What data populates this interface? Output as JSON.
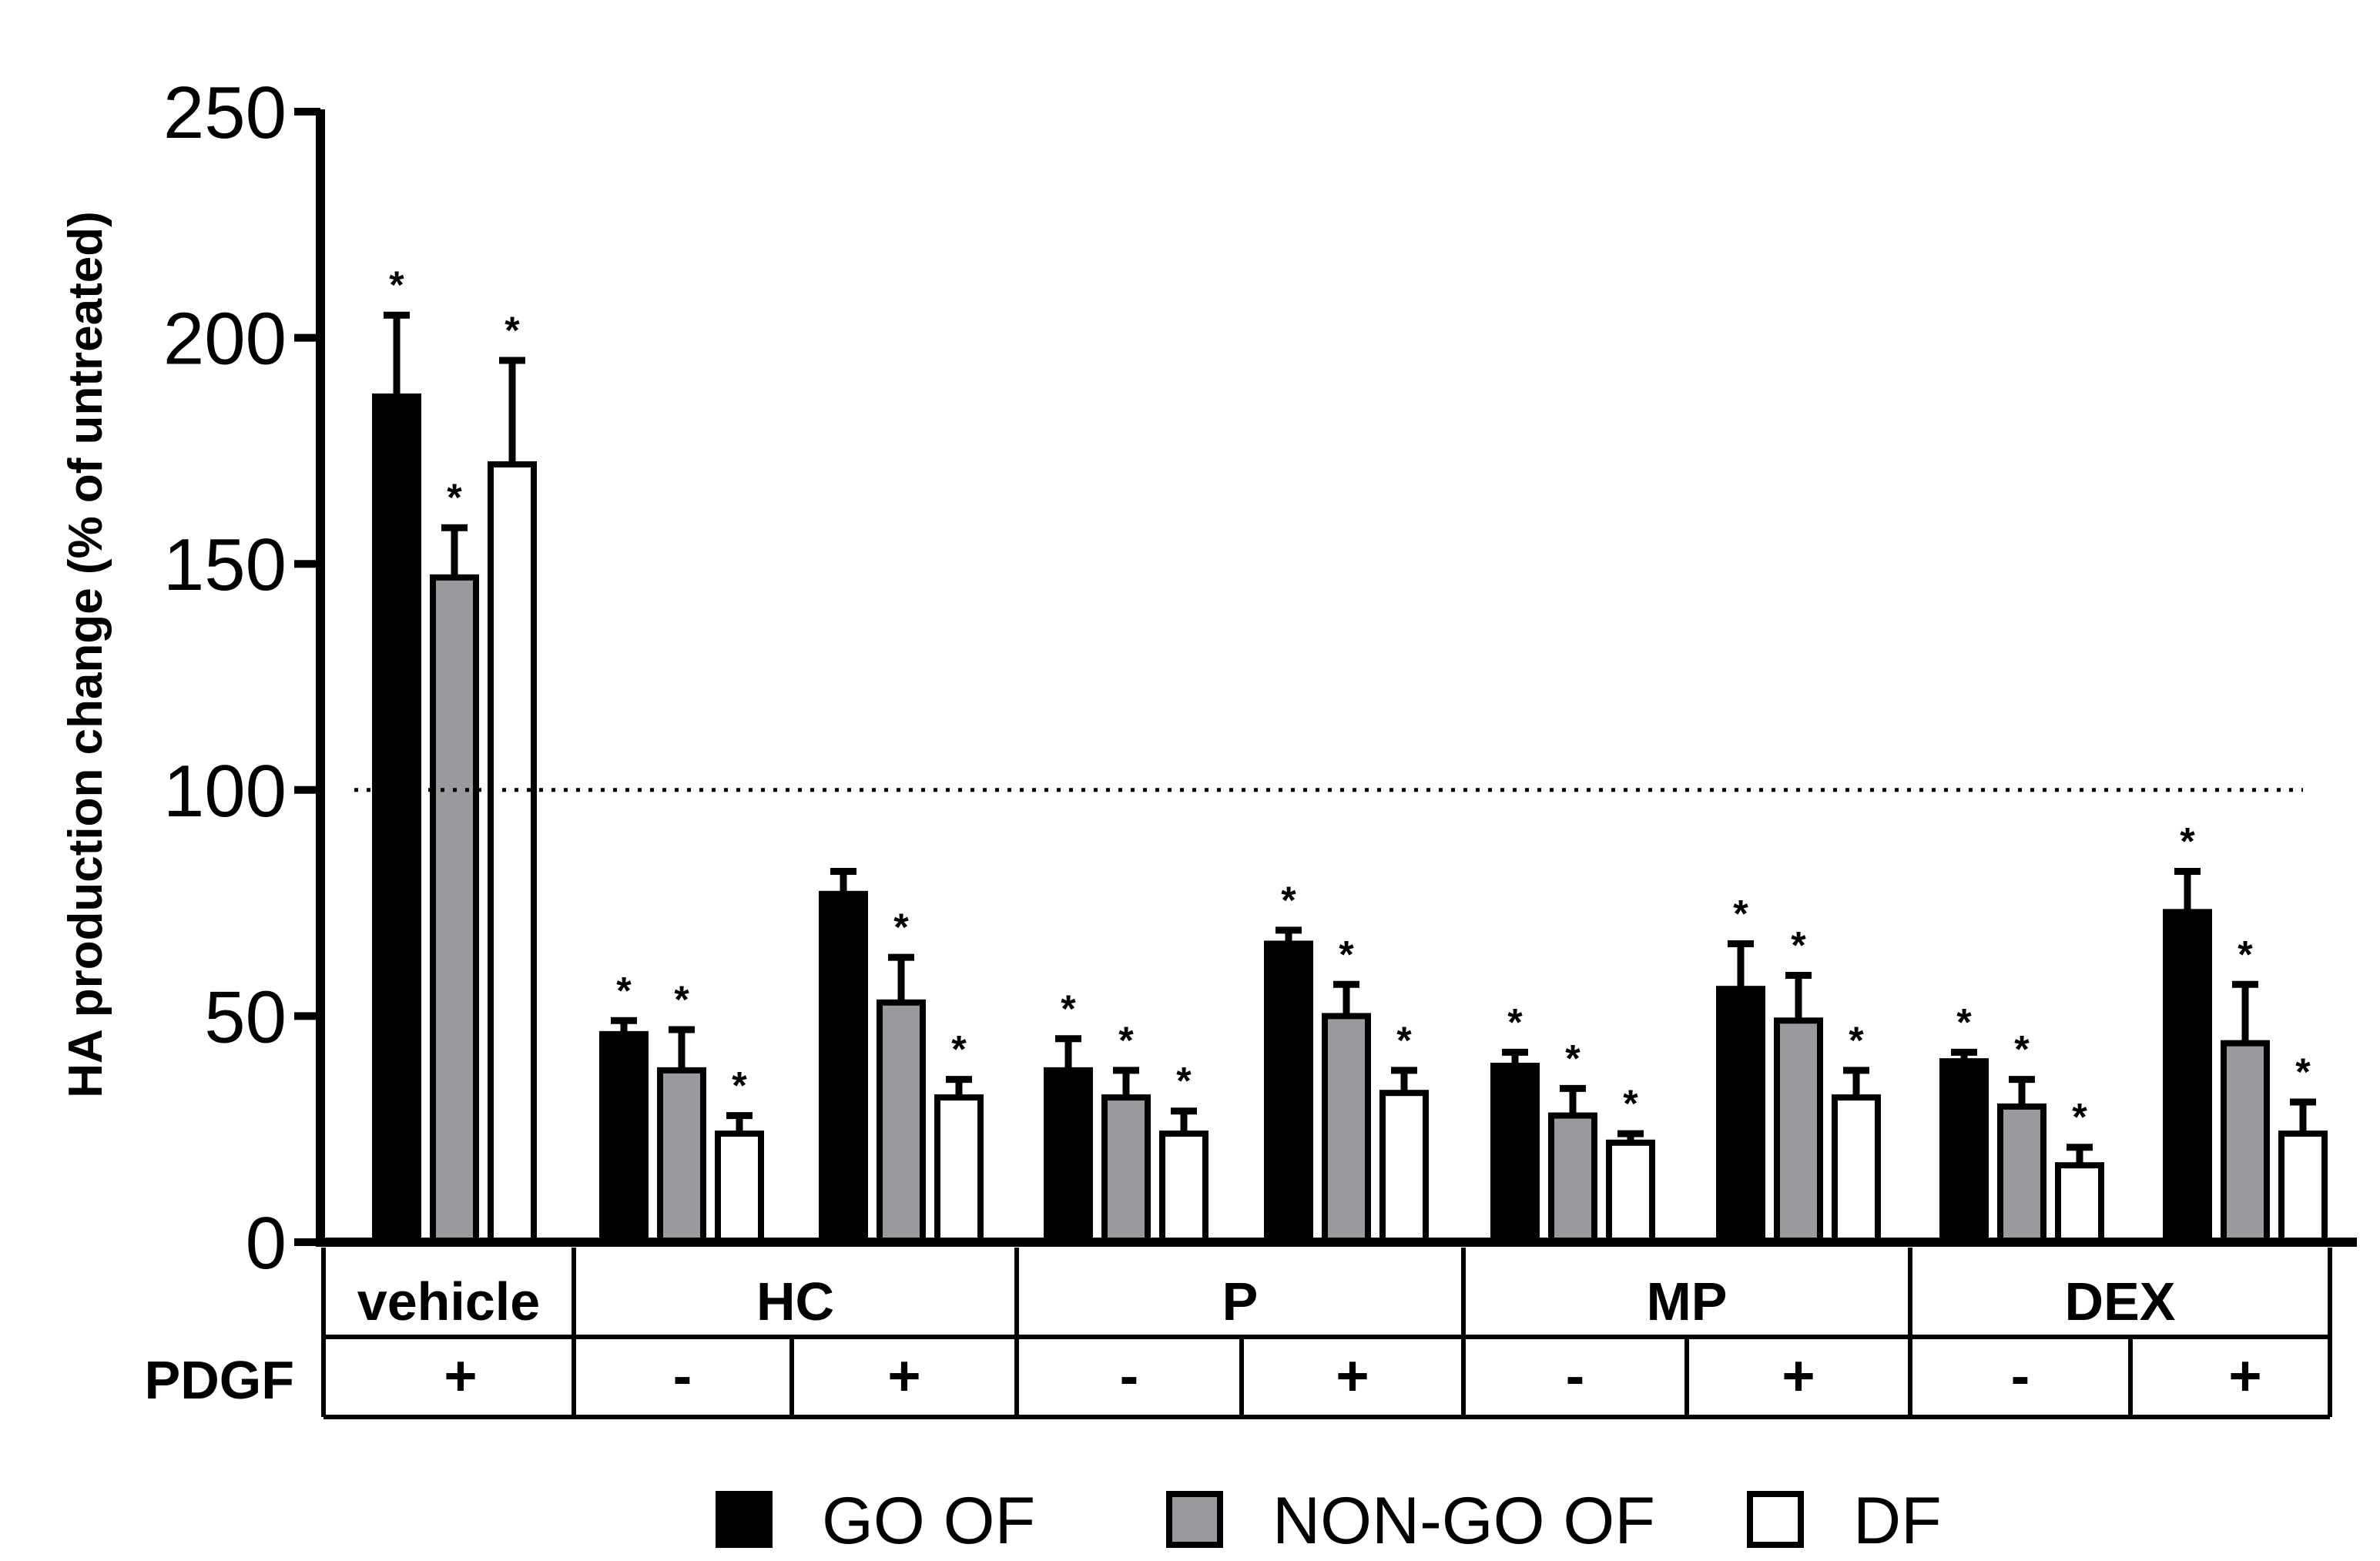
{
  "chart_data": {
    "type": "bar",
    "title": "",
    "ylabel": "HA production change (% of untreated)",
    "xlabel": "",
    "ylim": [
      0,
      250
    ],
    "yticks": [
      "0",
      "50",
      "100",
      "150",
      "200",
      "250"
    ],
    "reference_line": {
      "y": 100,
      "style": "dotted"
    },
    "colors": {
      "GO OF": "#000000",
      "NON-GO OF": "#9a9a9e",
      "DF": "#ffffff"
    },
    "series_names": [
      "GO OF",
      "NON-GO OF",
      "DF"
    ],
    "groups": [
      {
        "treatment": "vehicle",
        "pdgf": "+",
        "values": [
          187,
          147,
          172
        ],
        "errors": [
          18,
          11,
          23
        ],
        "significant": [
          true,
          true,
          true
        ]
      },
      {
        "treatment": "HC",
        "pdgf": "-",
        "values": [
          46,
          38,
          24
        ],
        "errors": [
          3,
          9,
          4
        ],
        "significant": [
          true,
          true,
          true
        ]
      },
      {
        "treatment": "HC",
        "pdgf": "+",
        "values": [
          77,
          53,
          32
        ],
        "errors": [
          5,
          10,
          4
        ],
        "significant": [
          false,
          true,
          true
        ]
      },
      {
        "treatment": "P",
        "pdgf": "-",
        "values": [
          38,
          32,
          24
        ],
        "errors": [
          7,
          6,
          5
        ],
        "significant": [
          true,
          true,
          true
        ]
      },
      {
        "treatment": "P",
        "pdgf": "+",
        "values": [
          66,
          50,
          33
        ],
        "errors": [
          3,
          7,
          5
        ],
        "significant": [
          true,
          true,
          true
        ]
      },
      {
        "treatment": "MP",
        "pdgf": "-",
        "values": [
          39,
          28,
          22
        ],
        "errors": [
          3,
          6,
          2
        ],
        "significant": [
          true,
          true,
          true
        ]
      },
      {
        "treatment": "MP",
        "pdgf": "+",
        "values": [
          56,
          49,
          32
        ],
        "errors": [
          10,
          10,
          6
        ],
        "significant": [
          true,
          true,
          true
        ]
      },
      {
        "treatment": "DEX",
        "pdgf": "-",
        "values": [
          40,
          30,
          17
        ],
        "errors": [
          2,
          6,
          4
        ],
        "significant": [
          true,
          true,
          true
        ]
      },
      {
        "treatment": "DEX",
        "pdgf": "+",
        "values": [
          73,
          44,
          24
        ],
        "errors": [
          9,
          13,
          7
        ],
        "significant": [
          true,
          true,
          true
        ]
      }
    ],
    "categories": [
      "vehicle",
      "HC",
      "P",
      "MP",
      "DEX"
    ],
    "row_label": "PDGF",
    "significance_marker": "*",
    "legend": [
      {
        "label": "GO OF",
        "swatch": "#000000"
      },
      {
        "label": "NON-GO OF",
        "swatch": "#9a9a9e"
      },
      {
        "label": "DF",
        "swatch": "#ffffff"
      }
    ],
    "legend_position": "bottom-center"
  }
}
